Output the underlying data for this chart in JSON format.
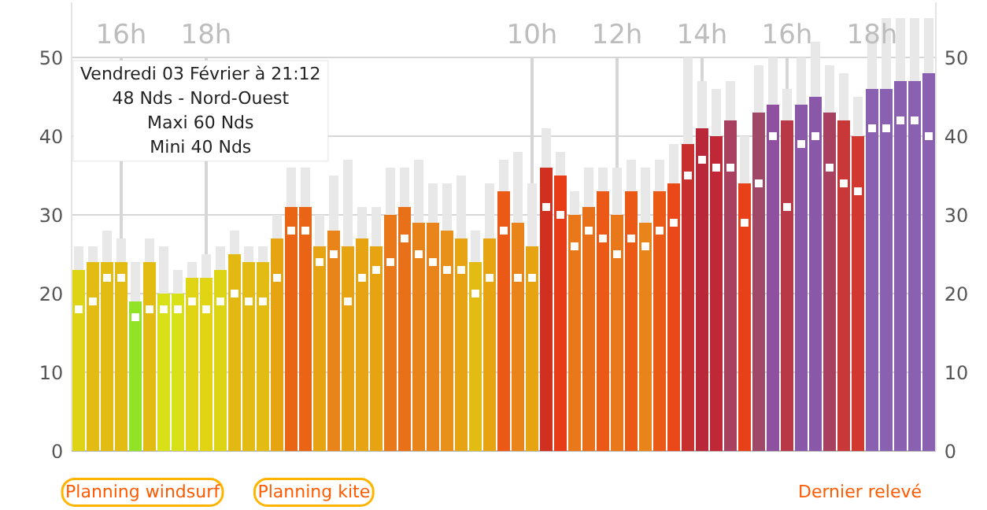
{
  "chart_data": {
    "type": "bar",
    "stacked": true,
    "categories": [
      null,
      null,
      null,
      "16h",
      null,
      null,
      null,
      null,
      null,
      "18h",
      null,
      null,
      null,
      null,
      null,
      null,
      null,
      null,
      null,
      null,
      null,
      null,
      null,
      null,
      null,
      null,
      null,
      null,
      null,
      null,
      null,
      null,
      "10h",
      null,
      null,
      null,
      null,
      null,
      "12h",
      null,
      null,
      null,
      null,
      null,
      "14h",
      null,
      null,
      null,
      null,
      null,
      "16h",
      null,
      null,
      null,
      null,
      null,
      "18h",
      null,
      null,
      null,
      null
    ],
    "series": [
      {
        "colors": [
          "#dcd414",
          "#e2bc12",
          "#e2bc12",
          "#e2bc12",
          "#92e226",
          "#e2bc12",
          "#d8e018",
          "#d8e018",
          "#e0d414",
          "#e0d414",
          "#dcd414",
          "#e2b812",
          "#e2bc12",
          "#e2bc12",
          "#e6a412",
          "#ea6416",
          "#ea6416",
          "#e6a412",
          "#e8841a",
          "#e6a412",
          "#e6a412",
          "#e6a412",
          "#e8781a",
          "#e87018",
          "#e8841a",
          "#e8841a",
          "#e8901a",
          "#e6a412",
          "#e2bc12",
          "#e6a412",
          "#ea5a16",
          "#e8841a",
          "#e6a412",
          "#d03020",
          "#e83c18",
          "#e8781a",
          "#e87018",
          "#ea5a16",
          "#e8781a",
          "#ea5a16",
          "#e8841a",
          "#ea5a16",
          "#ea4818",
          "#c83030",
          "#b82838",
          "#c02838",
          "#a84060",
          "#e84018",
          "#a04868",
          "#9050a0",
          "#b83848",
          "#8a58a8",
          "#8a58a8",
          "#a84060",
          "#c83838",
          "#d03830",
          "#8a60b0",
          "#8a60b0",
          "#8a60b0",
          "#8a60b0",
          "#8a60b0"
        ],
        "values": [
          23,
          24,
          24,
          24,
          19,
          24,
          20,
          20,
          22,
          22,
          23,
          25,
          24,
          24,
          27,
          31,
          31,
          26,
          28,
          26,
          27,
          26,
          30,
          31,
          29,
          29,
          28,
          27,
          24,
          27,
          33,
          29,
          26,
          36,
          35,
          30,
          31,
          33,
          30,
          33,
          29,
          33,
          34,
          39,
          41,
          40,
          42,
          34,
          43,
          44,
          42,
          44,
          45,
          43,
          42,
          40,
          46,
          46,
          47,
          47,
          48
        ]
      },
      {
        "color": "#e8e8e8",
        "values": [
          3,
          2,
          4,
          3,
          5,
          3,
          6,
          3,
          2,
          3,
          3,
          3,
          2,
          2,
          3,
          5,
          5,
          4,
          7,
          11,
          4,
          5,
          6,
          5,
          8,
          5,
          6,
          8,
          4,
          7,
          4,
          9,
          8,
          5,
          3,
          3,
          5,
          3,
          6,
          4,
          7,
          4,
          5,
          11,
          6,
          6,
          5,
          6,
          6,
          6,
          4,
          6,
          7,
          6,
          6,
          5,
          7,
          9,
          8,
          8,
          7
        ]
      },
      {
        "type": "scatter",
        "color": "#ffffff",
        "marker": "square",
        "values": [
          18,
          19,
          22,
          22,
          17,
          18,
          18,
          18,
          19,
          18,
          19,
          20,
          19,
          19,
          22,
          28,
          28,
          24,
          25,
          19,
          22,
          23,
          24,
          27,
          25,
          24,
          23,
          23,
          20,
          22,
          28,
          22,
          22,
          31,
          30,
          26,
          28,
          27,
          25,
          27,
          26,
          28,
          29,
          35,
          37,
          36,
          36,
          29,
          34,
          40,
          31,
          39,
          40,
          36,
          34,
          33,
          41,
          41,
          42,
          42,
          40
        ]
      }
    ],
    "ylim": [
      0,
      57
    ],
    "yticks": [
      0,
      10,
      20,
      30,
      40,
      50
    ],
    "y2lim": [
      0,
      57
    ],
    "y2ticks": [
      0,
      10,
      20,
      30,
      40,
      50
    ],
    "grid": true,
    "annotations": [
      "Vendredi 03 Février à 21:12",
      "48 Nds - Nord-Ouest",
      "Maxi 60 Nds",
      "Mini 40 Nds",
      "Planning windsurf",
      "Planning kite",
      "Dernier relevé"
    ]
  }
}
